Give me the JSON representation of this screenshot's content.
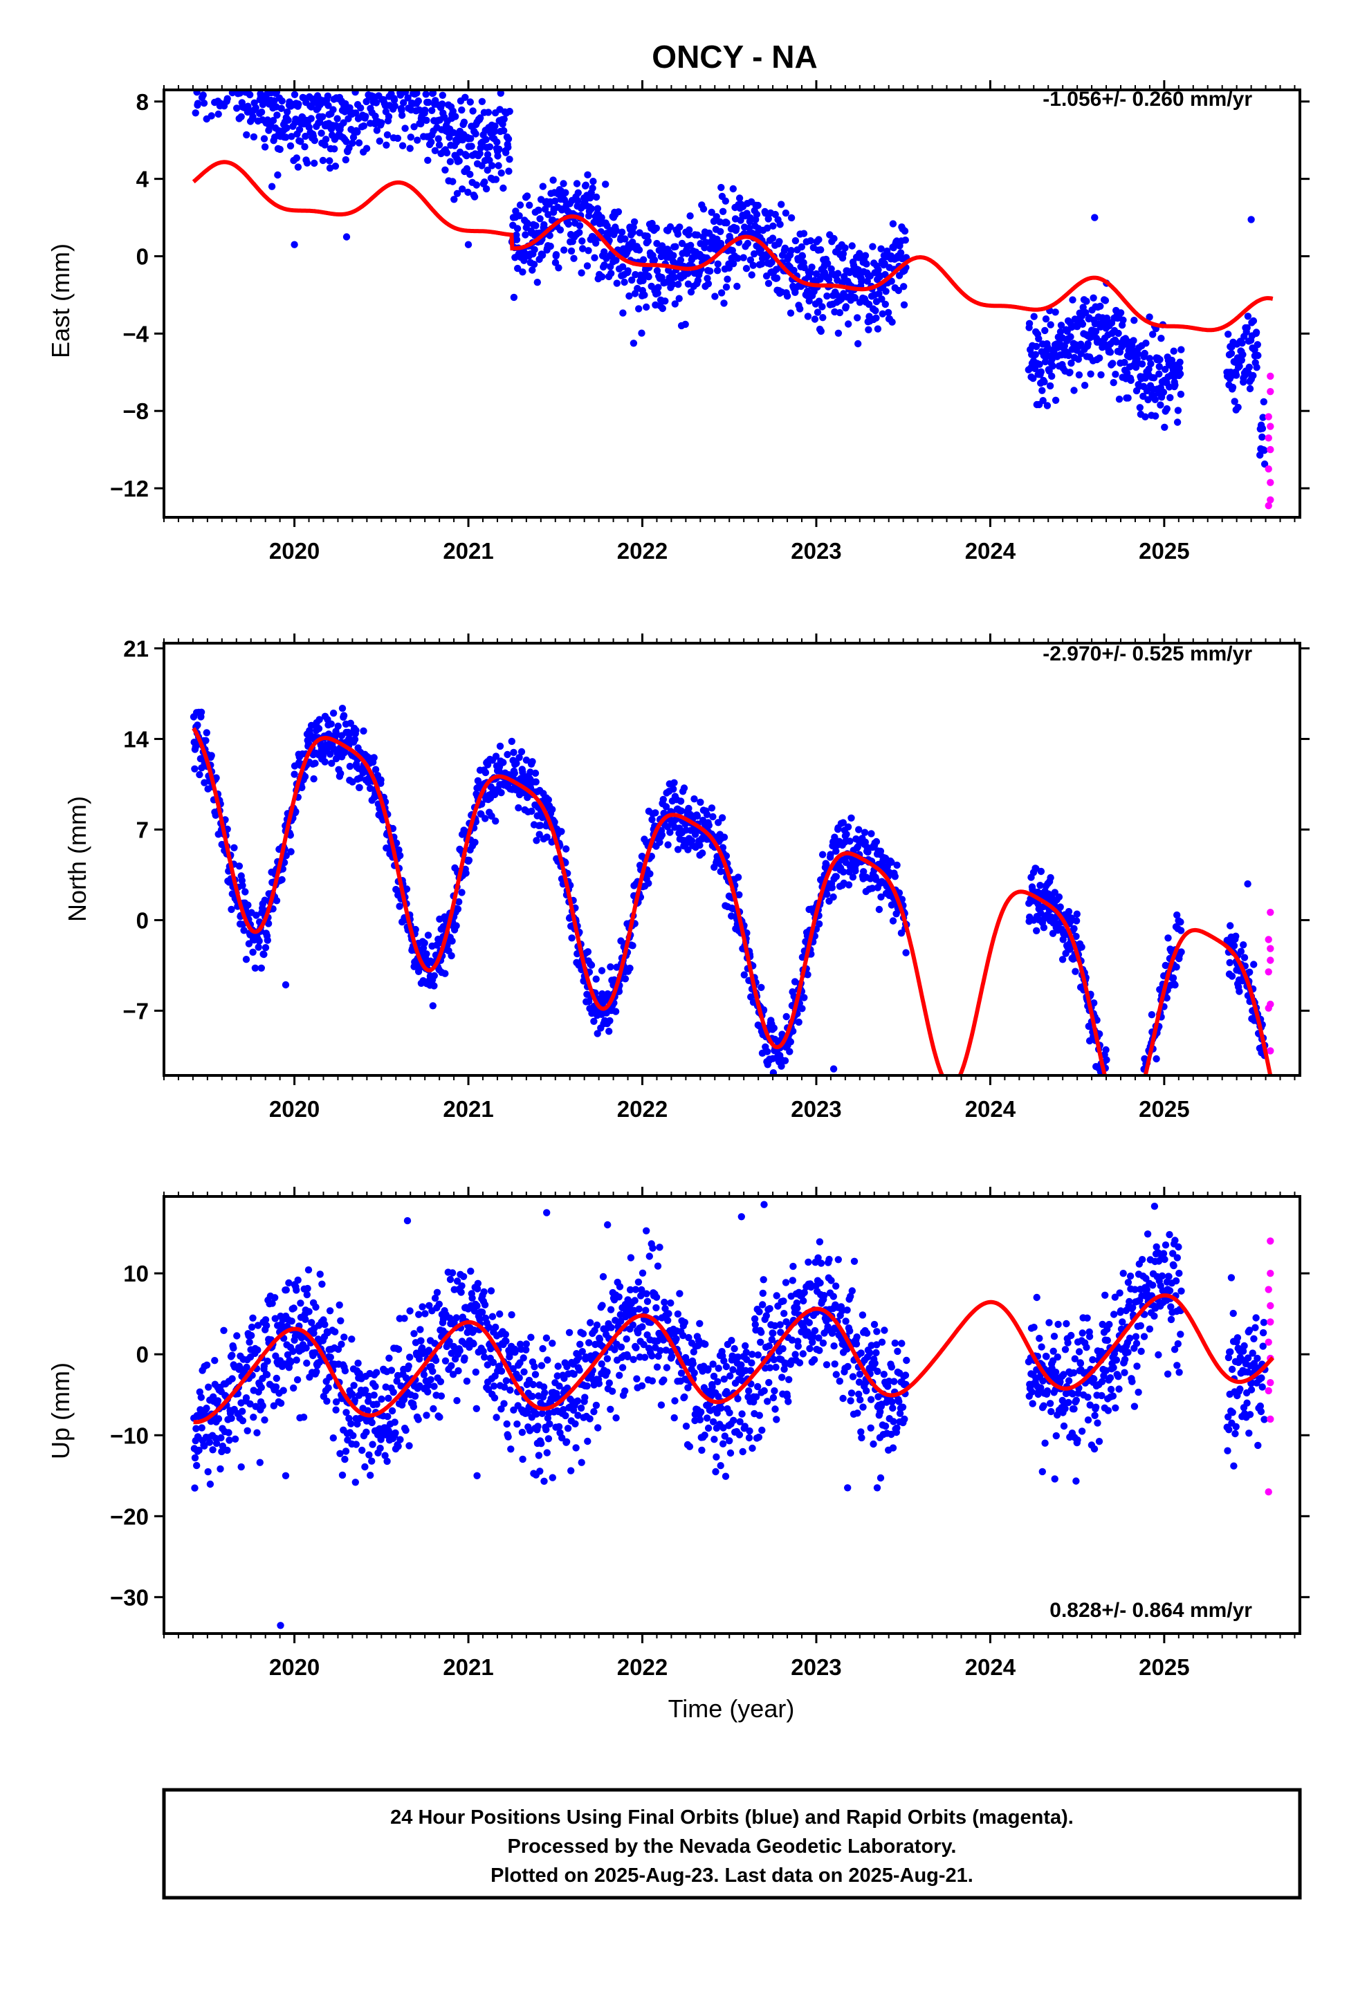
{
  "title": "ONCY - NA",
  "xlabel": "Time (year)",
  "footer": {
    "line1": "24 Hour Positions Using Final Orbits (blue) and Rapid Orbits (magenta).",
    "line2": "Processed by the Nevada Geodetic Laboratory.",
    "line3": "Plotted on 2025-Aug-23. Last data on 2025-Aug-21."
  },
  "colors": {
    "final": "#0000ff",
    "rapid": "#ff00ff",
    "model": "#ff0000"
  },
  "chart_data": [
    {
      "type": "scatter",
      "name": "east",
      "ylabel": "East (mm)",
      "rate": "-1.056+/- 0.260 mm/yr",
      "xlim": [
        2019.25,
        2025.78
      ],
      "ylim": [
        -13.5,
        8.6
      ],
      "yticks": [
        8,
        4,
        0,
        -4,
        -8,
        -12
      ],
      "ytick_labels": [
        "8",
        "4",
        "0",
        "−4",
        "−8",
        "−12"
      ],
      "xticks": [
        2020,
        2021,
        2022,
        2023,
        2024,
        2025
      ],
      "xtick_labels": [
        "2020",
        "2021",
        "2022",
        "2023",
        "2024",
        "2025"
      ],
      "model": {
        "offset": 3.1,
        "trend": -1.056,
        "annual": [
          1.0,
          3.8
        ],
        "semi": [
          0.35,
          1.4
        ],
        "jumps": [
          [
            2021.25,
            -0.7
          ]
        ]
      },
      "final_segments": [
        [
          2019.42,
          2021.24,
          4.8,
          1.3
        ],
        [
          2021.25,
          2023.52,
          0.3,
          1.2
        ],
        [
          2024.22,
          2025.1,
          -2.6,
          1.1
        ],
        [
          2025.36,
          2025.54,
          -2.5,
          1.0
        ]
      ],
      "final_outliers": [
        [
          2019.9,
          7.3
        ],
        [
          2020.5,
          6.9
        ],
        [
          2020.3,
          1.0
        ],
        [
          2020.0,
          0.6
        ],
        [
          2021.0,
          0.6
        ],
        [
          2021.95,
          -4.5
        ],
        [
          2023.3,
          -3.8
        ],
        [
          2024.8,
          -5.2
        ],
        [
          2025.5,
          1.9
        ],
        [
          2024.6,
          2.0
        ]
      ],
      "final_shift": [
        2025.55,
        2025.58,
        -9.3,
        0.9
      ],
      "rapid": [
        [
          2025.61,
          -6.2
        ],
        [
          2025.61,
          -7.0
        ],
        [
          2025.6,
          -8.3
        ],
        [
          2025.61,
          -8.8
        ],
        [
          2025.6,
          -9.4
        ],
        [
          2025.61,
          -10.0
        ],
        [
          2025.6,
          -11.0
        ],
        [
          2025.61,
          -11.7
        ],
        [
          2025.61,
          -12.6
        ],
        [
          2025.6,
          -12.9
        ]
      ]
    },
    {
      "type": "scatter",
      "name": "north",
      "ylabel": "North (mm)",
      "rate": "-2.970+/- 0.525 mm/yr",
      "xlim": [
        2019.25,
        2025.78
      ],
      "ylim": [
        -12,
        21.4
      ],
      "yticks": [
        21,
        14,
        7,
        0,
        -7
      ],
      "ytick_labels": [
        "21",
        "14",
        "7",
        "0",
        "−7"
      ],
      "xticks": [
        2020,
        2021,
        2022,
        2023,
        2024,
        2025
      ],
      "xtick_labels": [
        "2020",
        "2021",
        "2022",
        "2023",
        "2024",
        "2025"
      ],
      "model": {
        "offset": 8.3,
        "trend": -2.97,
        "annual": [
          8.0,
          1.65
        ],
        "semi": [
          1.9,
          0.35
        ],
        "jumps": []
      },
      "final_segments": [
        [
          2019.42,
          2023.52,
          0,
          1.2
        ],
        [
          2024.22,
          2025.1,
          0,
          1.2
        ],
        [
          2025.36,
          2025.58,
          0,
          1.1
        ]
      ],
      "final_outliers": [
        [
          2019.95,
          -5.0
        ],
        [
          2023.1,
          -11.5
        ],
        [
          2025.48,
          2.8
        ]
      ],
      "final_shift": null,
      "rapid": [
        [
          2025.61,
          0.6
        ],
        [
          2025.6,
          -1.5
        ],
        [
          2025.61,
          -2.2
        ],
        [
          2025.61,
          -3.1
        ],
        [
          2025.6,
          -4.0
        ],
        [
          2025.61,
          -6.5
        ],
        [
          2025.6,
          -6.8
        ],
        [
          2025.61,
          -10.1
        ]
      ]
    },
    {
      "type": "scatter",
      "name": "up",
      "ylabel": "Up (mm)",
      "rate": "0.828+/- 0.864 mm/yr",
      "xlim": [
        2019.25,
        2025.78
      ],
      "ylim": [
        -34.5,
        19.5
      ],
      "yticks": [
        10,
        0,
        -10,
        -20,
        -30
      ],
      "ytick_labels": [
        "10",
        "0",
        "−10",
        "−20",
        "−30"
      ],
      "xticks": [
        2020,
        2021,
        2022,
        2023,
        2024,
        2025
      ],
      "xtick_labels": [
        "2020",
        "2021",
        "2022",
        "2023",
        "2024",
        "2025"
      ],
      "model": {
        "offset": -2.5,
        "trend": 0.828,
        "annual": [
          5.4,
          6.1
        ],
        "semi": [
          0.6,
          1.0
        ],
        "jumps": []
      },
      "final_segments": [
        [
          2019.42,
          2023.52,
          0,
          4.0
        ],
        [
          2024.22,
          2025.1,
          0,
          4.0
        ],
        [
          2025.36,
          2025.58,
          0,
          4.0
        ]
      ],
      "final_outliers": [
        [
          2019.92,
          -33.5
        ],
        [
          2019.95,
          -15.0
        ],
        [
          2021.05,
          -15.0
        ],
        [
          2022.7,
          18.5
        ],
        [
          2022.57,
          17.0
        ],
        [
          2021.45,
          17.5
        ],
        [
          2020.65,
          16.5
        ],
        [
          2023.18,
          -16.5
        ],
        [
          2023.35,
          -16.5
        ],
        [
          2024.3,
          -14.5
        ],
        [
          2025.4,
          -13.8
        ],
        [
          2021.8,
          16.0
        ]
      ],
      "final_shift": null,
      "rapid": [
        [
          2025.61,
          14.0
        ],
        [
          2025.61,
          10.0
        ],
        [
          2025.6,
          8.0
        ],
        [
          2025.61,
          6.0
        ],
        [
          2025.61,
          4.0
        ],
        [
          2025.6,
          1.5
        ],
        [
          2025.61,
          -0.5
        ],
        [
          2025.61,
          -3.5
        ],
        [
          2025.6,
          -4.5
        ],
        [
          2025.61,
          -8.0
        ],
        [
          2025.6,
          -17.0
        ]
      ]
    }
  ]
}
